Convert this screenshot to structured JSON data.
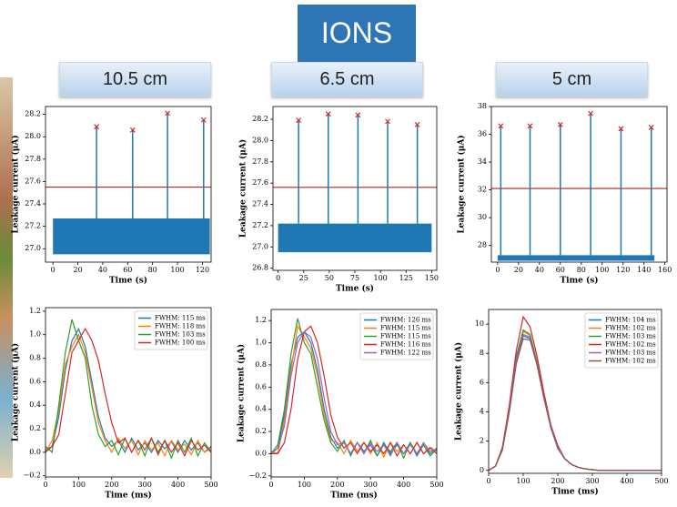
{
  "header": {
    "title": "IONS",
    "labels": [
      "10.5 cm",
      "6.5 cm",
      "5 cm"
    ]
  },
  "chart_data": [
    {
      "type": "trace",
      "xlabel": "Time (s)",
      "ylabel": "Leakage current (μA)",
      "xlim": [
        -6,
        127
      ],
      "xticks": [
        0,
        20,
        40,
        60,
        80,
        100,
        120
      ],
      "ylim": [
        26.88,
        28.27
      ],
      "yticks": [
        {
          "value": 27,
          "label": "27.0"
        },
        27.2,
        27.4,
        27.6,
        27.8,
        {
          "value": 28,
          "label": "28.0"
        },
        28.2
      ],
      "noise_x": [
        0,
        126
      ],
      "noise_low": [
        26.95,
        26.95
      ],
      "noise_high": [
        27.27,
        27.27
      ],
      "noise_color": "#1f77b4",
      "threshold": 27.55,
      "threshold_color": "#b22222",
      "peaks": {
        "x": [
          35,
          64,
          92,
          121
        ],
        "values": [
          28.09,
          28.06,
          28.21,
          28.15
        ],
        "color": "#d62728"
      }
    },
    {
      "type": "trace",
      "xlabel": "Time (s)",
      "ylabel": "Leakage current (μA)",
      "xlim": [
        -5,
        155
      ],
      "xticks": [
        0,
        25,
        50,
        75,
        100,
        125,
        150
      ],
      "ylim": [
        26.78,
        28.32
      ],
      "yticks": [
        26.8,
        {
          "value": 27,
          "label": "27.0"
        },
        27.2,
        27.4,
        27.6,
        27.8,
        {
          "value": 28,
          "label": "28.0"
        },
        28.2
      ],
      "noise_x": [
        0,
        150
      ],
      "noise_low": [
        26.95,
        26.95
      ],
      "noise_high": [
        27.22,
        27.22
      ],
      "noise_color": "#1f77b4",
      "threshold": 27.56,
      "threshold_color": "#b22222",
      "peaks": {
        "x": [
          20,
          49,
          78,
          107,
          136
        ],
        "values": [
          28.19,
          28.25,
          28.24,
          28.18,
          28.15
        ],
        "color": "#d62728"
      }
    },
    {
      "type": "trace",
      "xlabel": "Time (s)",
      "ylabel": "Leakage current (μA)",
      "xlim": [
        -6,
        162
      ],
      "xticks": [
        0,
        20,
        40,
        60,
        80,
        100,
        120,
        140,
        160
      ],
      "ylim": [
        26.8,
        38
      ],
      "yticks": [
        28,
        30,
        32,
        34,
        36,
        38
      ],
      "noise_x": [
        0,
        150
      ],
      "noise_low": [
        26.9,
        26.9
      ],
      "noise_high": [
        27.3,
        27.3
      ],
      "noise_color": "#1f77b4",
      "threshold": 32.1,
      "threshold_color": "#b22222",
      "peaks": {
        "x": [
          3,
          31,
          60,
          89,
          118,
          147
        ],
        "values": [
          36.6,
          36.6,
          36.7,
          37.5,
          36.4,
          36.5
        ],
        "color": "#d62728"
      }
    },
    {
      "type": "line",
      "xlabel": "Time (ms)",
      "ylabel": "Leakage current (μA)",
      "legend": "upper right",
      "xlim": [
        0,
        500
      ],
      "xticks": [
        0,
        100,
        200,
        300,
        400,
        500
      ],
      "ylim": [
        -0.21,
        1.23
      ],
      "yticks": [
        {
          "value": -0.2,
          "label": "−0.2"
        },
        {
          "value": 0,
          "label": "0.0"
        },
        0.2,
        0.4,
        0.6,
        0.8,
        {
          "value": 1,
          "label": "1.0"
        },
        1.2
      ],
      "x": [
        0,
        20,
        40,
        60,
        80,
        100,
        120,
        140,
        160,
        180,
        200,
        220,
        240,
        260,
        280,
        300,
        320,
        340,
        360,
        380,
        400,
        420,
        440,
        460,
        480,
        500
      ],
      "series": [
        {
          "name": "FWHM: 115 ms",
          "color": "#1f77b4",
          "values": [
            0.02,
            0.05,
            0.3,
            0.7,
            0.95,
            1.05,
            0.9,
            0.6,
            0.3,
            0.12,
            0.05,
            0.1,
            0.0,
            0.12,
            0.02,
            0.08,
            0.0,
            0.1,
            0.03,
            0.09,
            0.0,
            0.1,
            0.02,
            0.08,
            0.0,
            0.05
          ]
        },
        {
          "name": "FWHM: 118 ms",
          "color": "#ff7f0e",
          "values": [
            0.0,
            0.1,
            0.35,
            0.75,
            0.9,
            1.0,
            0.85,
            0.55,
            0.25,
            0.1,
            0.0,
            0.12,
            0.03,
            0.1,
            -0.02,
            0.1,
            0.02,
            0.08,
            -0.03,
            0.1,
            0.02,
            0.07,
            -0.02,
            0.1,
            0.0,
            0.03
          ]
        },
        {
          "name": "FWHM: 103 ms",
          "color": "#2ca02c",
          "values": [
            0.05,
            0.0,
            0.4,
            0.85,
            1.13,
            0.95,
            0.8,
            0.4,
            0.15,
            0.05,
            0.1,
            -0.02,
            0.12,
            0.0,
            0.1,
            -0.03,
            0.12,
            0.0,
            0.1,
            -0.05,
            0.1,
            0.0,
            0.12,
            -0.03,
            0.08,
            0.0
          ]
        },
        {
          "name": "FWHM: 100 ms",
          "color": "#d62728",
          "values": [
            0.0,
            0.05,
            0.15,
            0.5,
            0.85,
            0.95,
            1.05,
            0.95,
            0.78,
            0.5,
            0.25,
            0.08,
            0.12,
            0.0,
            0.1,
            0.02,
            0.12,
            -0.02,
            0.1,
            0.0,
            0.08,
            -0.03,
            0.1,
            0.02,
            0.06,
            0.0
          ]
        }
      ]
    },
    {
      "type": "line",
      "xlabel": "Time (ms)",
      "ylabel": "Leakage current (μA)",
      "legend": "upper right",
      "xlim": [
        0,
        500
      ],
      "xticks": [
        0,
        100,
        200,
        300,
        400,
        500
      ],
      "ylim": [
        -0.21,
        1.3
      ],
      "yticks": [
        {
          "value": -0.2,
          "label": "−0.2"
        },
        {
          "value": 0,
          "label": "0.0"
        },
        0.2,
        0.4,
        0.6,
        0.8,
        {
          "value": 1,
          "label": "1.0"
        },
        1.2
      ],
      "x": [
        0,
        20,
        40,
        60,
        80,
        100,
        120,
        140,
        160,
        180,
        200,
        220,
        240,
        260,
        280,
        300,
        320,
        340,
        360,
        380,
        400,
        420,
        440,
        460,
        480,
        500
      ],
      "series": [
        {
          "name": "FWHM: 126 ms",
          "color": "#1f77b4",
          "values": [
            0.0,
            0.05,
            0.35,
            0.8,
            1.05,
            1.1,
            1.0,
            0.75,
            0.4,
            0.15,
            0.05,
            0.1,
            0.0,
            0.1,
            0.02,
            0.08,
            -0.02,
            0.1,
            0.0,
            0.08,
            0.0,
            0.1,
            -0.02,
            0.08,
            0.0,
            0.05
          ]
        },
        {
          "name": "FWHM: 115 ms",
          "color": "#ff7f0e",
          "values": [
            0.02,
            0.0,
            0.3,
            0.75,
            1.15,
            1.05,
            0.95,
            0.7,
            0.35,
            0.12,
            0.1,
            0.0,
            0.12,
            0.02,
            0.1,
            0.0,
            0.1,
            -0.03,
            0.1,
            0.02,
            0.08,
            0.0,
            0.1,
            0.0,
            0.06,
            0.02
          ]
        },
        {
          "name": "FWHM: 115 ms",
          "color": "#2ca02c",
          "values": [
            0.0,
            0.08,
            0.4,
            0.9,
            1.22,
            1.0,
            0.9,
            0.6,
            0.3,
            0.1,
            0.02,
            0.12,
            -0.02,
            0.1,
            0.0,
            0.12,
            -0.02,
            0.08,
            0.02,
            0.1,
            -0.04,
            0.1,
            0.0,
            0.08,
            -0.02,
            0.04
          ]
        },
        {
          "name": "FWHM: 116 ms",
          "color": "#d62728",
          "values": [
            0.0,
            0.0,
            0.1,
            0.4,
            0.85,
            1.1,
            1.15,
            1.0,
            0.7,
            0.35,
            0.15,
            0.05,
            0.1,
            0.0,
            0.1,
            0.02,
            0.08,
            0.0,
            0.1,
            -0.02,
            0.08,
            0.0,
            0.1,
            0.0,
            0.05,
            0.0
          ]
        },
        {
          "name": "FWHM: 122 ms",
          "color": "#9467bd",
          "values": [
            0.0,
            0.05,
            0.25,
            0.7,
            1.0,
            1.1,
            1.05,
            0.85,
            0.5,
            0.2,
            0.08,
            0.1,
            0.0,
            0.1,
            0.0,
            0.1,
            0.02,
            0.08,
            -0.02,
            0.1,
            0.0,
            0.08,
            0.0,
            0.1,
            0.02,
            0.04
          ]
        }
      ]
    },
    {
      "type": "line",
      "xlabel": "Time (ms)",
      "ylabel": "Leakage current (μA)",
      "legend": "upper right",
      "xlim": [
        0,
        500
      ],
      "xticks": [
        0,
        100,
        200,
        300,
        400,
        500
      ],
      "ylim": [
        -0.2,
        11
      ],
      "yticks": [
        0,
        2,
        4,
        6,
        8,
        10
      ],
      "x": [
        0,
        20,
        40,
        60,
        80,
        100,
        120,
        140,
        160,
        180,
        200,
        220,
        240,
        260,
        280,
        300,
        320,
        340,
        360,
        380,
        400,
        420,
        440,
        460,
        480,
        500
      ],
      "series": [
        {
          "name": "FWHM: 104 ms",
          "color": "#1f77b4",
          "values": [
            0,
            0.3,
            1.5,
            4.2,
            7.5,
            9.2,
            9.0,
            7.3,
            5.0,
            3.0,
            1.6,
            0.8,
            0.4,
            0.2,
            0.1,
            0.05,
            0,
            0,
            0,
            0,
            0,
            0,
            0,
            0,
            0,
            0
          ]
        },
        {
          "name": "FWHM: 102 ms",
          "color": "#ff7f0e",
          "values": [
            0,
            0.3,
            1.5,
            4.3,
            7.7,
            9.5,
            9.2,
            7.4,
            5.0,
            3.0,
            1.6,
            0.8,
            0.4,
            0.2,
            0.1,
            0.05,
            0,
            0,
            0,
            0,
            0,
            0,
            0,
            0,
            0,
            0
          ]
        },
        {
          "name": "FWHM: 103 ms",
          "color": "#2ca02c",
          "values": [
            0,
            0.3,
            1.6,
            4.4,
            7.8,
            9.6,
            9.3,
            7.4,
            5.1,
            3.0,
            1.6,
            0.8,
            0.4,
            0.2,
            0.1,
            0.05,
            0,
            0,
            0,
            0,
            0,
            0,
            0,
            0,
            0,
            0
          ]
        },
        {
          "name": "FWHM: 102 ms",
          "color": "#d62728",
          "values": [
            0,
            0.3,
            1.6,
            4.5,
            8.2,
            10.5,
            9.8,
            7.8,
            5.3,
            3.1,
            1.7,
            0.8,
            0.4,
            0.2,
            0.1,
            0.05,
            0,
            0,
            0,
            0,
            0,
            0,
            0,
            0,
            0,
            0
          ]
        },
        {
          "name": "FWHM: 103 ms",
          "color": "#9467bd",
          "values": [
            0,
            0.3,
            1.5,
            4.2,
            7.6,
            9.3,
            9.1,
            7.3,
            5.0,
            3.0,
            1.6,
            0.8,
            0.4,
            0.2,
            0.1,
            0.05,
            0,
            0,
            0,
            0,
            0,
            0,
            0,
            0,
            0,
            0
          ]
        },
        {
          "name": "FWHM: 102 ms",
          "color": "#8c564b",
          "values": [
            0,
            0.3,
            1.4,
            4.0,
            7.3,
            9.0,
            8.9,
            7.2,
            4.9,
            2.9,
            1.5,
            0.8,
            0.4,
            0.2,
            0.1,
            0.05,
            0,
            0,
            0,
            0,
            0,
            0,
            0,
            0,
            0,
            0
          ]
        }
      ]
    }
  ]
}
